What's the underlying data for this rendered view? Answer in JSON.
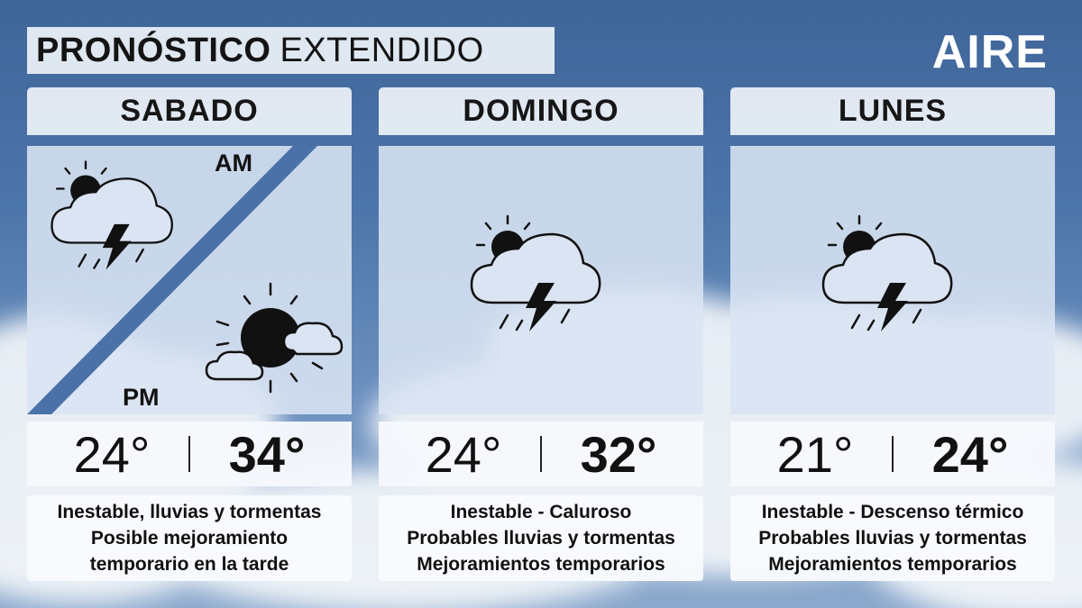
{
  "header": {
    "title_bold": "PRONÓSTICO",
    "title_light": "EXTENDIDO",
    "logo": "AIRE"
  },
  "days": [
    {
      "name": "SABADO",
      "am_label": "AM",
      "pm_label": "PM",
      "am_icon": "thunderstorm-partly-cloudy-icon",
      "pm_icon": "sun-with-clouds-icon",
      "temp_min": "24°",
      "temp_max": "34°",
      "description": [
        "Inestable, lluvias y tormentas",
        "Posible mejoramiento",
        "temporario en la tarde"
      ]
    },
    {
      "name": "DOMINGO",
      "icon": "thunderstorm-partly-cloudy-icon",
      "temp_min": "24°",
      "temp_max": "32°",
      "description": [
        "Inestable - Caluroso",
        "Probables lluvias y tormentas",
        "Mejoramientos temporarios"
      ]
    },
    {
      "name": "LUNES",
      "icon": "thunderstorm-partly-cloudy-icon",
      "temp_min": "21°",
      "temp_max": "24°",
      "description": [
        "Inestable - Descenso térmico",
        "Probables lluvias y tormentas",
        "Mejoramientos temporarios"
      ]
    }
  ]
}
